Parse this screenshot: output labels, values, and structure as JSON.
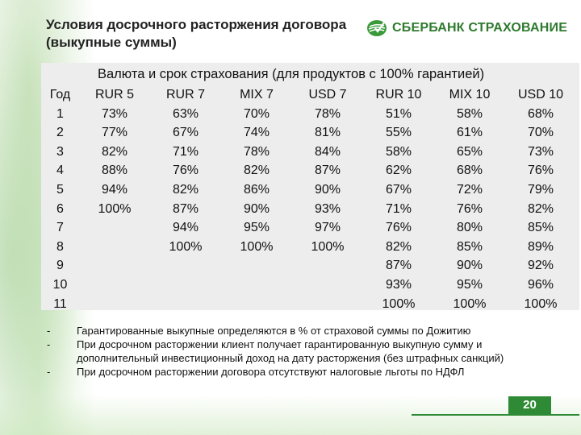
{
  "title": "Условия досрочного расторжения договора (выкупные суммы)",
  "logo": {
    "text": "СБЕРБАНК СТРАХОВАНИЕ",
    "icon": "sberbank-leaf-icon",
    "color": "#2f7a2f"
  },
  "table": {
    "caption": "Валюта и срок страхования (для продуктов с 100% гарантией)",
    "headers": [
      "Год",
      "RUR 5",
      "RUR 7",
      "MIX 7",
      "USD 7",
      "RUR 10",
      "MIX 10",
      "USD 10"
    ],
    "rows": [
      [
        "1",
        "73%",
        "63%",
        "70%",
        "78%",
        "51%",
        "58%",
        "68%"
      ],
      [
        "2",
        "77%",
        "67%",
        "74%",
        "81%",
        "55%",
        "61%",
        "70%"
      ],
      [
        "3",
        "82%",
        "71%",
        "78%",
        "84%",
        "58%",
        "65%",
        "73%"
      ],
      [
        "4",
        "88%",
        "76%",
        "82%",
        "87%",
        "62%",
        "68%",
        "76%"
      ],
      [
        "5",
        "94%",
        "82%",
        "86%",
        "90%",
        "67%",
        "72%",
        "79%"
      ],
      [
        "6",
        "100%",
        "87%",
        "90%",
        "93%",
        "71%",
        "76%",
        "82%"
      ],
      [
        "7",
        "",
        "94%",
        "95%",
        "97%",
        "76%",
        "80%",
        "85%"
      ],
      [
        "8",
        "",
        "100%",
        "100%",
        "100%",
        "82%",
        "85%",
        "89%"
      ],
      [
        "9",
        "",
        "",
        "",
        "",
        "87%",
        "90%",
        "92%"
      ],
      [
        "10",
        "",
        "",
        "",
        "",
        "93%",
        "95%",
        "96%"
      ],
      [
        "11",
        "",
        "",
        "",
        "",
        "100%",
        "100%",
        "100%"
      ]
    ]
  },
  "notes": [
    {
      "dash": "-",
      "lines": [
        "Гарантированные выкупные определяются в % от страховой суммы по Дожитию"
      ]
    },
    {
      "dash": "-",
      "lines": [
        "При досрочном расторжении клиент получает гарантированную выкупную сумму и",
        "дополнительный инвестиционный доход на дату расторжения (без штрафных санкций)"
      ]
    },
    {
      "dash": "-",
      "lines": [
        "При досрочном расторжении договора отсутствуют налоговые льготы по НДФЛ"
      ]
    }
  ],
  "page_number": "20",
  "accent_color": "#2e8a34"
}
